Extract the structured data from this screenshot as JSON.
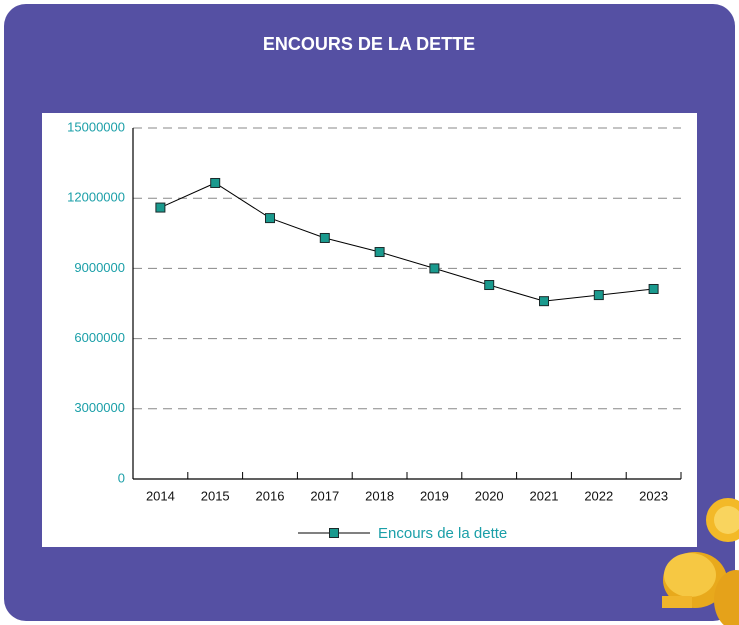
{
  "chart_data": {
    "type": "line",
    "title": "ENCOURS DE LA DETTE",
    "categories": [
      "2014",
      "2015",
      "2016",
      "2017",
      "2018",
      "2019",
      "2020",
      "2021",
      "2022",
      "2023"
    ],
    "series": [
      {
        "name": "Encours de la dette",
        "color": "#1a9a8e",
        "values": [
          11600000,
          12650000,
          11150000,
          10300000,
          9700000,
          9000000,
          8290000,
          7600000,
          7860000,
          8120000
        ]
      }
    ],
    "ylim": [
      0,
      15000000
    ],
    "yticks": [
      0,
      3000000,
      6000000,
      9000000,
      12000000,
      15000000
    ],
    "grid": true
  }
}
